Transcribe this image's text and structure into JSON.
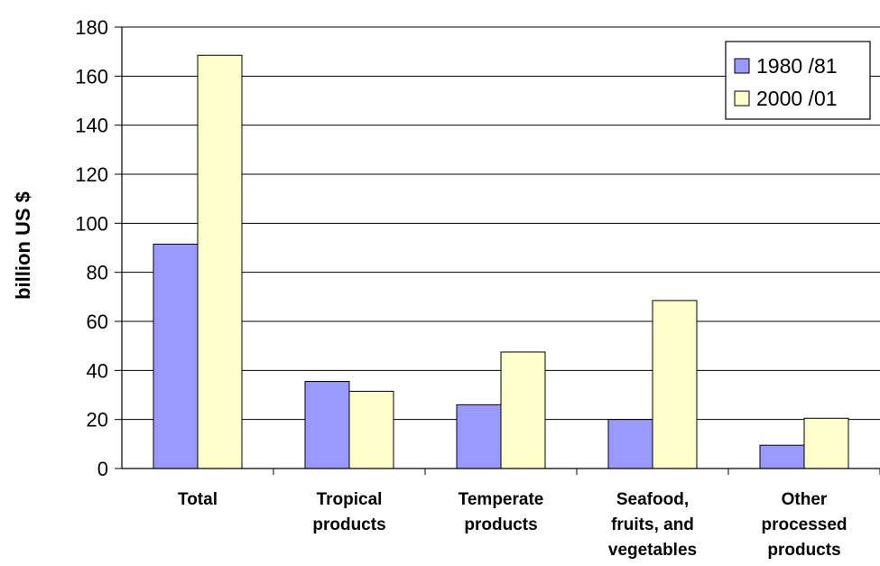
{
  "chart_data": {
    "type": "bar",
    "categories": [
      [
        "Total"
      ],
      [
        "Tropical",
        "products"
      ],
      [
        "Temperate",
        "products"
      ],
      [
        "Seafood,",
        "fruits, and",
        "vegetables"
      ],
      [
        "Other",
        "processed",
        "products"
      ]
    ],
    "series": [
      {
        "name": "1980 /81",
        "values": [
          91.5,
          35.5,
          26.0,
          20.0,
          9.5
        ]
      },
      {
        "name": "2000 /01",
        "values": [
          168.5,
          31.5,
          47.5,
          68.5,
          20.5
        ]
      }
    ],
    "ylabel": "billion US $",
    "xlabel": "",
    "ylim": [
      0,
      180
    ],
    "ytick_step": 20,
    "grid": true,
    "legend_position": "top-right",
    "colors": {
      "series": [
        "#9999ff",
        "#ffffcc"
      ],
      "bar_stroke": "#000000",
      "grid": "#000000",
      "axis": "#000000"
    }
  }
}
